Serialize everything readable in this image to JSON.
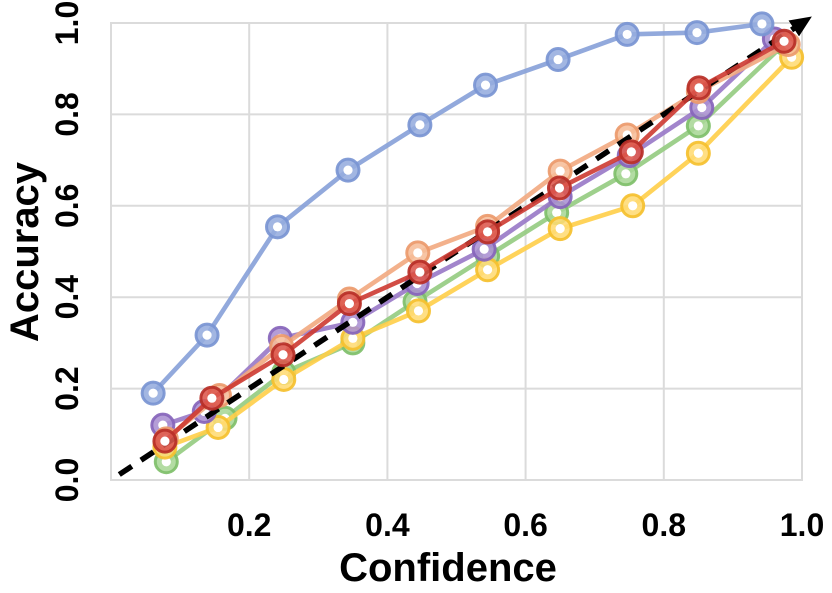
{
  "figure": {
    "background": "#ffffff"
  },
  "chart_data": {
    "type": "line",
    "title": "",
    "xlabel": "Confidence",
    "ylabel": "Accuracy",
    "xlim": [
      0,
      1
    ],
    "ylim": [
      0,
      1
    ],
    "grid": {
      "show": true,
      "color": "#dbdbdb",
      "x_gridlines": [
        0.2,
        0.4,
        0.6,
        0.8
      ],
      "y_gridlines": [
        0.2,
        0.4,
        0.6,
        0.8
      ]
    },
    "xticks": [
      {
        "v": 0.2,
        "label": "0.2"
      },
      {
        "v": 0.4,
        "label": "0.4"
      },
      {
        "v": 0.6,
        "label": "0.6"
      },
      {
        "v": 0.8,
        "label": "0.8"
      },
      {
        "v": 1.0,
        "label": "1.0"
      }
    ],
    "yticks": [
      {
        "v": 0.0,
        "label": "0.0"
      },
      {
        "v": 0.2,
        "label": "0.2"
      },
      {
        "v": 0.4,
        "label": "0.4"
      },
      {
        "v": 0.6,
        "label": "0.6"
      },
      {
        "v": 0.8,
        "label": "0.8"
      },
      {
        "v": 1.0,
        "label": "1.0"
      }
    ],
    "legend": null,
    "reference_line": {
      "name": "identity-diagonal",
      "style": "dashed",
      "color": "#000000",
      "from": [
        0.012,
        0.012
      ],
      "to": [
        0.993,
        0.993
      ],
      "arrow_end": true,
      "z": 5
    },
    "series": [
      {
        "name": "green",
        "z": 1,
        "line_color": "#93cb7f",
        "face_color": "#a9d796",
        "edge_color": "#7fbf6a",
        "x": [
          0.08,
          0.165,
          0.25,
          0.35,
          0.44,
          0.545,
          0.645,
          0.745,
          0.85,
          0.975
        ],
        "y": [
          0.04,
          0.135,
          0.235,
          0.3,
          0.39,
          0.49,
          0.585,
          0.67,
          0.775,
          0.955
        ]
      },
      {
        "name": "yellow",
        "z": 2,
        "line_color": "#ffce48",
        "face_color": "#ffdb73",
        "edge_color": "#f5c02f",
        "x": [
          0.078,
          0.155,
          0.25,
          0.35,
          0.445,
          0.545,
          0.65,
          0.755,
          0.85,
          0.985
        ],
        "y": [
          0.072,
          0.115,
          0.22,
          0.31,
          0.37,
          0.46,
          0.55,
          0.6,
          0.715,
          0.925
        ]
      },
      {
        "name": "purple",
        "z": 3,
        "line_color": "#9878c6",
        "face_color": "#aa90d1",
        "edge_color": "#8765bb",
        "x": [
          0.075,
          0.135,
          0.245,
          0.35,
          0.443,
          0.54,
          0.65,
          0.75,
          0.855,
          0.96
        ],
        "y": [
          0.12,
          0.15,
          0.31,
          0.345,
          0.43,
          0.505,
          0.62,
          0.71,
          0.815,
          0.965
        ]
      },
      {
        "name": "orange",
        "z": 4,
        "line_color": "#f2a87f",
        "face_color": "#f6bd98",
        "edge_color": "#ec9a6d",
        "x": [
          0.08,
          0.157,
          0.247,
          0.345,
          0.444,
          0.545,
          0.65,
          0.747,
          0.85,
          0.98
        ],
        "y": [
          0.09,
          0.185,
          0.292,
          0.396,
          0.497,
          0.555,
          0.676,
          0.755,
          0.85,
          0.953
        ]
      },
      {
        "name": "red",
        "z": 6,
        "line_color": "#cd3a31",
        "face_color": "#dc574c",
        "edge_color": "#b72f27",
        "x": [
          0.078,
          0.146,
          0.249,
          0.345,
          0.447,
          0.545,
          0.649,
          0.753,
          0.851,
          0.974
        ],
        "y": [
          0.085,
          0.179,
          0.274,
          0.386,
          0.455,
          0.543,
          0.639,
          0.718,
          0.858,
          0.96
        ]
      },
      {
        "name": "blue",
        "z": 7,
        "line_color": "#86a0d8",
        "face_color": "#95acde",
        "edge_color": "#7a95d2",
        "x": [
          0.061,
          0.139,
          0.241,
          0.343,
          0.447,
          0.542,
          0.647,
          0.747,
          0.848,
          0.942
        ],
        "y": [
          0.19,
          0.317,
          0.554,
          0.678,
          0.777,
          0.864,
          0.92,
          0.975,
          0.979,
          0.998
        ]
      }
    ]
  }
}
